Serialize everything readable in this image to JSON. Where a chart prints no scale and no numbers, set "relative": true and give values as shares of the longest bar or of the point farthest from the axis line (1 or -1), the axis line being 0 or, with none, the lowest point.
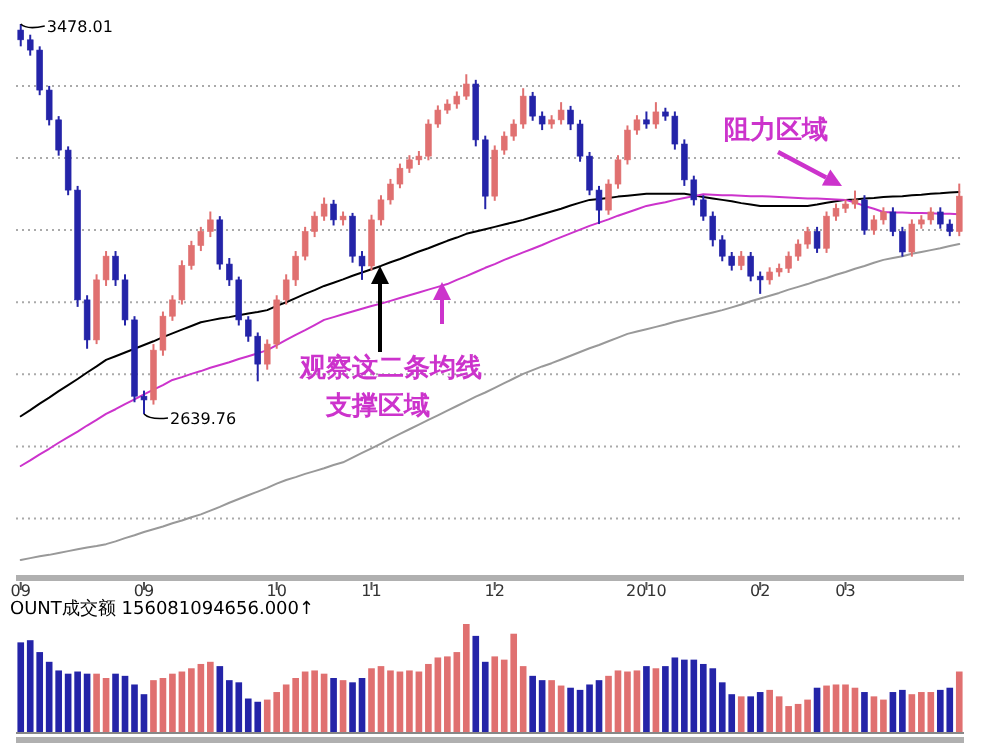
{
  "chart_data": [
    {
      "type": "candlestick",
      "grid": "y",
      "yticks": [
        {
          "value": 3345,
          "label": null
        },
        {
          "value": 3190,
          "label": null
        },
        {
          "value": 3035,
          "label": null
        },
        {
          "value": 2880,
          "label": null
        },
        {
          "value": 2725,
          "label": null
        },
        {
          "value": 2570,
          "label": null
        },
        {
          "value": 2415,
          "label": null
        }
      ],
      "categories": [
        "09",
        null,
        null,
        null,
        null,
        null,
        null,
        null,
        null,
        null,
        null,
        null,
        null,
        "09",
        null,
        null,
        null,
        null,
        null,
        null,
        null,
        null,
        null,
        null,
        null,
        null,
        null,
        "10",
        null,
        null,
        null,
        null,
        null,
        null,
        null,
        null,
        null,
        "11",
        null,
        null,
        null,
        null,
        null,
        null,
        null,
        null,
        null,
        null,
        null,
        null,
        "12",
        null,
        null,
        null,
        null,
        null,
        null,
        null,
        null,
        null,
        null,
        null,
        null,
        null,
        null,
        null,
        "2010",
        null,
        null,
        null,
        null,
        null,
        null,
        null,
        null,
        null,
        null,
        null,
        "02",
        null,
        null,
        null,
        null,
        null,
        null,
        null,
        null,
        "03",
        null,
        null,
        null,
        null,
        null,
        null,
        null,
        null,
        null,
        null,
        null,
        null
      ],
      "ohlc": [
        [
          3465,
          3478.01,
          3430,
          3444
        ],
        [
          3444,
          3455,
          3410,
          3422
        ],
        [
          3422,
          3430,
          3325,
          3336
        ],
        [
          3336,
          3345,
          3260,
          3272
        ],
        [
          3272,
          3280,
          3195,
          3207
        ],
        [
          3207,
          3215,
          3110,
          3121
        ],
        [
          3121,
          3130,
          2870,
          2885
        ],
        [
          2885,
          2895,
          2780,
          2799
        ],
        [
          2799,
          2940,
          2790,
          2928
        ],
        [
          2928,
          2990,
          2915,
          2979
        ],
        [
          2979,
          2990,
          2915,
          2928
        ],
        [
          2928,
          2940,
          2830,
          2842
        ],
        [
          2842,
          2850,
          2665,
          2678
        ],
        [
          2678,
          2690,
          2639.76,
          2670
        ],
        [
          2670,
          2790,
          2660,
          2777
        ],
        [
          2777,
          2860,
          2765,
          2850
        ],
        [
          2850,
          2895,
          2840,
          2885
        ],
        [
          2885,
          2970,
          2875,
          2959
        ],
        [
          2959,
          3012,
          2950,
          3002
        ],
        [
          3002,
          3042,
          2990,
          3032
        ],
        [
          3032,
          3075,
          3020,
          3057
        ],
        [
          3057,
          3065,
          2950,
          2962
        ],
        [
          2962,
          2975,
          2915,
          2928
        ],
        [
          2928,
          2935,
          2830,
          2842
        ],
        [
          2842,
          2850,
          2795,
          2807
        ],
        [
          2807,
          2815,
          2710,
          2747
        ],
        [
          2747,
          2800,
          2735,
          2790
        ],
        [
          2790,
          2895,
          2780,
          2885
        ],
        [
          2885,
          2940,
          2875,
          2928
        ],
        [
          2928,
          2990,
          2915,
          2979
        ],
        [
          2979,
          3042,
          2970,
          3032
        ],
        [
          3032,
          3075,
          3020,
          3065
        ],
        [
          3065,
          3105,
          3055,
          3091
        ],
        [
          3091,
          3100,
          3045,
          3057
        ],
        [
          3057,
          3075,
          3045,
          3065
        ],
        [
          3065,
          3072,
          2965,
          2979
        ],
        [
          2979,
          2990,
          2928,
          2958
        ],
        [
          2958,
          3068,
          2948,
          3057
        ],
        [
          3057,
          3110,
          3045,
          3100
        ],
        [
          3100,
          3145,
          3090,
          3134
        ],
        [
          3134,
          3178,
          3125,
          3168
        ],
        [
          3168,
          3196,
          3158,
          3186
        ],
        [
          3186,
          3205,
          3175,
          3194
        ],
        [
          3194,
          3273,
          3185,
          3263
        ],
        [
          3263,
          3303,
          3255,
          3293
        ],
        [
          3293,
          3316,
          3285,
          3306
        ],
        [
          3306,
          3333,
          3296,
          3323
        ],
        [
          3323,
          3370,
          3315,
          3349
        ],
        [
          3349,
          3358,
          3215,
          3229
        ],
        [
          3229,
          3238,
          3080,
          3108
        ],
        [
          3108,
          3217,
          3098,
          3207
        ],
        [
          3207,
          3247,
          3197,
          3237
        ],
        [
          3237,
          3273,
          3227,
          3263
        ],
        [
          3263,
          3340,
          3253,
          3323
        ],
        [
          3323,
          3332,
          3270,
          3280
        ],
        [
          3280,
          3290,
          3250,
          3263
        ],
        [
          3263,
          3282,
          3253,
          3272
        ],
        [
          3272,
          3310,
          3262,
          3293
        ],
        [
          3293,
          3302,
          3250,
          3263
        ],
        [
          3263,
          3272,
          3182,
          3194
        ],
        [
          3194,
          3203,
          3110,
          3121
        ],
        [
          3121,
          3130,
          3048,
          3078
        ],
        [
          3078,
          3144,
          3068,
          3134
        ],
        [
          3134,
          3196,
          3124,
          3186
        ],
        [
          3186,
          3260,
          3176,
          3250
        ],
        [
          3250,
          3282,
          3240,
          3272
        ],
        [
          3272,
          3290,
          3253,
          3263
        ],
        [
          3263,
          3310,
          3253,
          3289
        ],
        [
          3289,
          3298,
          3270,
          3280
        ],
        [
          3280,
          3290,
          3208,
          3220
        ],
        [
          3220,
          3230,
          3130,
          3143
        ],
        [
          3143,
          3152,
          3088,
          3100
        ],
        [
          3100,
          3110,
          3055,
          3065
        ],
        [
          3065,
          3075,
          3000,
          3014
        ],
        [
          3014,
          3024,
          2968,
          2979
        ],
        [
          2979,
          2988,
          2948,
          2959
        ],
        [
          2959,
          2990,
          2949,
          2979
        ],
        [
          2979,
          2988,
          2925,
          2936
        ],
        [
          2936,
          2946,
          2898,
          2928
        ],
        [
          2928,
          2955,
          2918,
          2945
        ],
        [
          2945,
          2963,
          2935,
          2953
        ],
        [
          2953,
          2989,
          2943,
          2979
        ],
        [
          2979,
          3015,
          2969,
          3005
        ],
        [
          3005,
          3042,
          2995,
          3032
        ],
        [
          3032,
          3042,
          2986,
          2996
        ],
        [
          2996,
          3075,
          2986,
          3065
        ],
        [
          3065,
          3092,
          3055,
          3082
        ],
        [
          3082,
          3101,
          3072,
          3091
        ],
        [
          3091,
          3120,
          3081,
          3100
        ],
        [
          3100,
          3110,
          3025,
          3035
        ],
        [
          3035,
          3067,
          3025,
          3057
        ],
        [
          3057,
          3084,
          3047,
          3074
        ],
        [
          3074,
          3084,
          3022,
          3032
        ],
        [
          3032,
          3042,
          2978,
          2988
        ],
        [
          2988,
          3058,
          2978,
          3048
        ],
        [
          3048,
          3067,
          3038,
          3057
        ],
        [
          3057,
          3084,
          3047,
          3074
        ],
        [
          3074,
          3084,
          3038,
          3048
        ],
        [
          3048,
          3058,
          3022,
          3032
        ],
        [
          3032,
          3135,
          3022,
          3108
        ]
      ],
      "colors": [
        "#2424a8",
        "#2424a8",
        "#2424a8",
        "#2424a8",
        "#2424a8",
        "#2424a8",
        "#2424a8",
        "#2424a8",
        "#e07070",
        "#e07070",
        "#2424a8",
        "#2424a8",
        "#2424a8",
        "#2424a8",
        "#e07070",
        "#e07070",
        "#e07070",
        "#e07070",
        "#e07070",
        "#e07070",
        "#e07070",
        "#2424a8",
        "#2424a8",
        "#2424a8",
        "#2424a8",
        "#2424a8",
        "#e07070",
        "#e07070",
        "#e07070",
        "#e07070",
        "#e07070",
        "#e07070",
        "#e07070",
        "#2424a8",
        "#e07070",
        "#2424a8",
        "#2424a8",
        "#e07070",
        "#e07070",
        "#e07070",
        "#e07070",
        "#e07070",
        "#e07070",
        "#e07070",
        "#e07070",
        "#e07070",
        "#e07070",
        "#e07070",
        "#2424a8",
        "#2424a8",
        "#e07070",
        "#e07070",
        "#e07070",
        "#e07070",
        "#2424a8",
        "#2424a8",
        "#e07070",
        "#e07070",
        "#2424a8",
        "#2424a8",
        "#2424a8",
        "#2424a8",
        "#e07070",
        "#e07070",
        "#e07070",
        "#e07070",
        "#2424a8",
        "#e07070",
        "#2424a8",
        "#2424a8",
        "#2424a8",
        "#2424a8",
        "#2424a8",
        "#2424a8",
        "#2424a8",
        "#2424a8",
        "#e07070",
        "#2424a8",
        "#2424a8",
        "#e07070",
        "#e07070",
        "#e07070",
        "#e07070",
        "#e07070",
        "#2424a8",
        "#e07070",
        "#e07070",
        "#e07070",
        "#e07070",
        "#2424a8",
        "#e07070",
        "#e07070",
        "#2424a8",
        "#2424a8",
        "#e07070",
        "#e07070",
        "#e07070",
        "#2424a8",
        "#2424a8",
        "#e07070"
      ],
      "series": [
        {
          "type": "line",
          "color": "#000000",
          "values": [
            2635,
            2648,
            2662,
            2675,
            2689,
            2702,
            2715,
            2729,
            2742,
            2756,
            2764,
            2772,
            2780,
            2788,
            2796,
            2805,
            2813,
            2821,
            2829,
            2837,
            2841,
            2845,
            2848,
            2852,
            2856,
            2859,
            2863,
            2872,
            2880,
            2889,
            2898,
            2906,
            2915,
            2922,
            2929,
            2937,
            2944,
            2951,
            2958,
            2966,
            2973,
            2981,
            2989,
            2996,
            3004,
            3012,
            3019,
            3027,
            3032,
            3037,
            3042,
            3047,
            3052,
            3057,
            3063,
            3069,
            3075,
            3081,
            3088,
            3094,
            3100,
            3102,
            3104,
            3107,
            3109,
            3111,
            3113,
            3113,
            3113,
            3113,
            3113,
            3110,
            3106,
            3103,
            3100,
            3097,
            3093,
            3090,
            3087,
            3087,
            3087,
            3087,
            3087,
            3087,
            3090,
            3094,
            3097,
            3100,
            3101,
            3103,
            3104,
            3106,
            3107,
            3108,
            3110,
            3111,
            3113,
            3114,
            3116,
            3117
          ]
        },
        {
          "type": "line",
          "color": "#cc33cc",
          "values": [
            2528,
            2540,
            2553,
            2565,
            2578,
            2590,
            2602,
            2615,
            2627,
            2640,
            2650,
            2661,
            2671,
            2682,
            2692,
            2702,
            2713,
            2719,
            2726,
            2732,
            2739,
            2745,
            2751,
            2758,
            2764,
            2770,
            2777,
            2788,
            2799,
            2810,
            2820,
            2831,
            2842,
            2848,
            2854,
            2860,
            2866,
            2872,
            2877,
            2883,
            2889,
            2895,
            2901,
            2907,
            2913,
            2919,
            2928,
            2936,
            2945,
            2954,
            2962,
            2971,
            2979,
            2987,
            2995,
            3003,
            3012,
            3020,
            3028,
            3036,
            3044,
            3051,
            3058,
            3066,
            3073,
            3080,
            3087,
            3091,
            3095,
            3100,
            3104,
            3108,
            3112,
            3111,
            3110,
            3110,
            3109,
            3108,
            3108,
            3107,
            3106,
            3105,
            3104,
            3103,
            3103,
            3102,
            3101,
            3100,
            3094,
            3087,
            3081,
            3074,
            3073,
            3073,
            3072,
            3072,
            3071,
            3070,
            3070,
            3069
          ]
        },
        {
          "type": "line",
          "color": "#999999",
          "values": [
            2326,
            2330,
            2334,
            2337,
            2341,
            2345,
            2349,
            2353,
            2356,
            2360,
            2366,
            2373,
            2379,
            2386,
            2392,
            2398,
            2405,
            2411,
            2418,
            2424,
            2432,
            2440,
            2449,
            2457,
            2465,
            2473,
            2481,
            2490,
            2498,
            2504,
            2511,
            2517,
            2523,
            2530,
            2536,
            2546,
            2556,
            2566,
            2576,
            2587,
            2597,
            2607,
            2617,
            2627,
            2637,
            2647,
            2657,
            2667,
            2677,
            2686,
            2696,
            2706,
            2716,
            2726,
            2734,
            2742,
            2749,
            2757,
            2765,
            2773,
            2781,
            2788,
            2796,
            2804,
            2812,
            2817,
            2822,
            2827,
            2832,
            2838,
            2843,
            2848,
            2853,
            2858,
            2863,
            2869,
            2875,
            2882,
            2888,
            2894,
            2900,
            2907,
            2913,
            2919,
            2926,
            2932,
            2939,
            2945,
            2952,
            2958,
            2965,
            2971,
            2975,
            2979,
            2984,
            2988,
            2992,
            2996,
            3001,
            3005
          ]
        }
      ],
      "annotations": [
        "3478.01",
        "2639.76",
        "观察这二条均线",
        "支撑区域",
        "阻力区域"
      ]
    },
    {
      "type": "bar",
      "relative": true,
      "title": "OUNT成交额 156081094656.000↑",
      "categories": [
        null,
        null,
        null,
        null,
        null,
        null,
        null,
        null,
        null,
        null,
        null,
        null,
        null,
        null,
        null,
        null,
        null,
        null,
        null,
        null,
        null,
        null,
        null,
        null,
        null,
        null,
        null,
        null,
        null,
        null,
        null,
        null,
        null,
        null,
        null,
        null,
        null,
        null,
        null,
        null,
        null,
        null,
        null,
        null,
        null,
        null,
        null,
        null,
        null,
        null,
        null,
        null,
        null,
        null,
        null,
        null,
        null,
        null,
        null,
        null,
        null,
        null,
        null,
        null,
        null,
        null,
        null,
        null,
        null,
        null,
        null,
        null,
        null,
        null,
        null,
        null,
        null,
        null,
        null,
        null,
        null,
        null,
        null,
        null,
        null,
        null,
        null,
        null,
        null,
        null,
        null,
        null,
        null,
        null,
        null,
        null,
        null,
        null,
        null,
        null
      ],
      "values": [
        0.83,
        0.85,
        0.74,
        0.65,
        0.57,
        0.54,
        0.56,
        0.54,
        0.54,
        0.5,
        0.54,
        0.52,
        0.44,
        0.35,
        0.48,
        0.5,
        0.54,
        0.56,
        0.59,
        0.63,
        0.65,
        0.61,
        0.48,
        0.46,
        0.31,
        0.28,
        0.3,
        0.37,
        0.44,
        0.5,
        0.56,
        0.57,
        0.54,
        0.5,
        0.48,
        0.46,
        0.5,
        0.59,
        0.61,
        0.57,
        0.56,
        0.57,
        0.56,
        0.63,
        0.69,
        0.7,
        0.74,
        1,
        0.89,
        0.65,
        0.7,
        0.67,
        0.91,
        0.61,
        0.52,
        0.48,
        0.48,
        0.43,
        0.41,
        0.39,
        0.44,
        0.48,
        0.52,
        0.57,
        0.56,
        0.57,
        0.61,
        0.59,
        0.61,
        0.69,
        0.67,
        0.67,
        0.63,
        0.59,
        0.46,
        0.35,
        0.33,
        0.33,
        0.37,
        0.39,
        0.33,
        0.24,
        0.26,
        0.3,
        0.41,
        0.43,
        0.44,
        0.44,
        0.41,
        0.37,
        0.33,
        0.3,
        0.37,
        0.39,
        0.35,
        0.37,
        0.37,
        0.39,
        0.41,
        0.56
      ],
      "colors": [
        "#2424a8",
        "#2424a8",
        "#2424a8",
        "#2424a8",
        "#2424a8",
        "#2424a8",
        "#2424a8",
        "#2424a8",
        "#e07070",
        "#e07070",
        "#2424a8",
        "#2424a8",
        "#2424a8",
        "#2424a8",
        "#e07070",
        "#e07070",
        "#e07070",
        "#e07070",
        "#e07070",
        "#e07070",
        "#e07070",
        "#2424a8",
        "#2424a8",
        "#2424a8",
        "#2424a8",
        "#2424a8",
        "#e07070",
        "#e07070",
        "#e07070",
        "#e07070",
        "#e07070",
        "#e07070",
        "#e07070",
        "#2424a8",
        "#e07070",
        "#2424a8",
        "#2424a8",
        "#e07070",
        "#e07070",
        "#e07070",
        "#e07070",
        "#e07070",
        "#e07070",
        "#e07070",
        "#e07070",
        "#e07070",
        "#e07070",
        "#e07070",
        "#2424a8",
        "#2424a8",
        "#e07070",
        "#e07070",
        "#e07070",
        "#e07070",
        "#2424a8",
        "#2424a8",
        "#e07070",
        "#e07070",
        "#2424a8",
        "#2424a8",
        "#2424a8",
        "#2424a8",
        "#e07070",
        "#e07070",
        "#e07070",
        "#e07070",
        "#2424a8",
        "#e07070",
        "#2424a8",
        "#2424a8",
        "#2424a8",
        "#2424a8",
        "#2424a8",
        "#2424a8",
        "#2424a8",
        "#2424a8",
        "#e07070",
        "#2424a8",
        "#2424a8",
        "#e07070",
        "#e07070",
        "#e07070",
        "#e07070",
        "#e07070",
        "#2424a8",
        "#e07070",
        "#e07070",
        "#e07070",
        "#e07070",
        "#2424a8",
        "#e07070",
        "#e07070",
        "#2424a8",
        "#2424a8",
        "#e07070",
        "#e07070",
        "#e07070",
        "#2424a8",
        "#2424a8",
        "#e07070"
      ]
    }
  ]
}
